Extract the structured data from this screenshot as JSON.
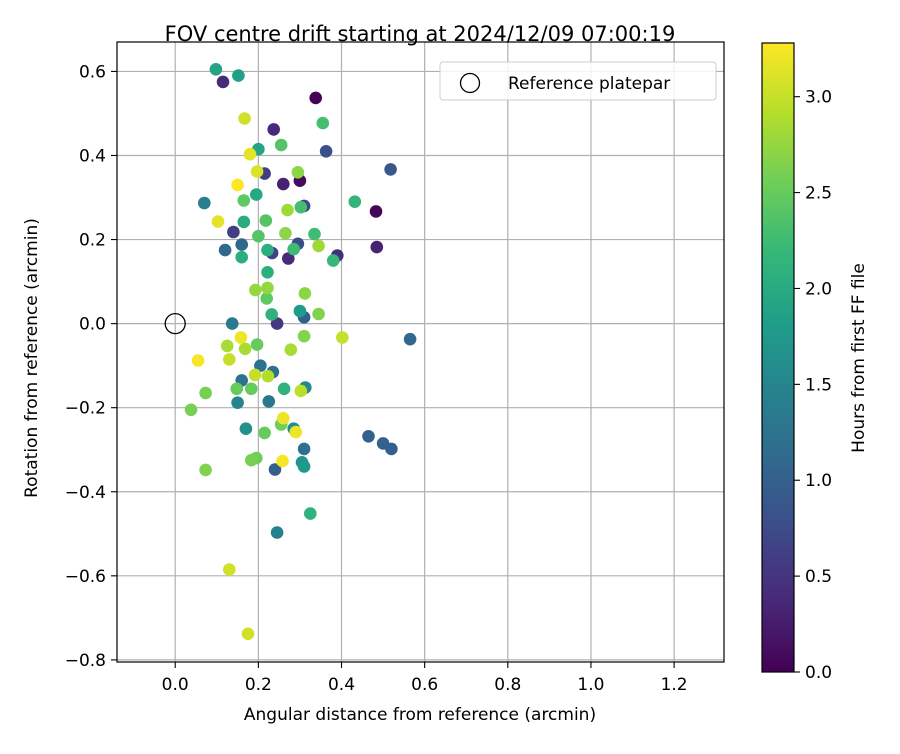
{
  "chart_data": {
    "type": "scatter",
    "title": "FOV centre drift starting at 2024/12/09 07:00:19",
    "xlabel": "Angular distance from reference (arcmin)",
    "ylabel": "Rotation from reference (arcmin)",
    "xlim": [
      -0.14,
      1.32
    ],
    "ylim": [
      -0.805,
      0.67
    ],
    "xticks": [
      "0.0",
      "0.2",
      "0.4",
      "0.6",
      "0.8",
      "1.0",
      "1.2"
    ],
    "yticks": [
      "−0.8",
      "−0.6",
      "−0.4",
      "−0.2",
      "0.0",
      "0.2",
      "0.4",
      "0.6"
    ],
    "grid": true,
    "legend": {
      "placement": "top-right",
      "entries": [
        {
          "label": "Reference platepar",
          "marker": "open-circle",
          "color": "#000000"
        }
      ]
    },
    "reference_point": {
      "x": 0.0,
      "y": 0.0
    },
    "colorbar": {
      "label": "Hours from first FF file",
      "colormap": "viridis",
      "range": [
        0.0,
        3.28
      ],
      "ticks": [
        "0.0",
        "0.5",
        "1.0",
        "1.5",
        "2.0",
        "2.5",
        "3.0"
      ]
    },
    "points": [
      {
        "x": 0.338,
        "y": 0.537,
        "c": 0.02
      },
      {
        "x": 0.483,
        "y": 0.267,
        "c": 0.05
      },
      {
        "x": 0.3,
        "y": 0.34,
        "c": 0.1
      },
      {
        "x": 0.485,
        "y": 0.182,
        "c": 0.3
      },
      {
        "x": 0.26,
        "y": 0.332,
        "c": 0.3
      },
      {
        "x": 0.115,
        "y": 0.575,
        "c": 0.4
      },
      {
        "x": 0.237,
        "y": 0.462,
        "c": 0.4
      },
      {
        "x": 0.272,
        "y": 0.155,
        "c": 0.4
      },
      {
        "x": 0.39,
        "y": 0.162,
        "c": 0.45
      },
      {
        "x": 0.245,
        "y": 0.0,
        "c": 0.55
      },
      {
        "x": 0.14,
        "y": 0.218,
        "c": 0.6
      },
      {
        "x": 0.215,
        "y": 0.357,
        "c": 0.6
      },
      {
        "x": 0.233,
        "y": 0.168,
        "c": 0.65
      },
      {
        "x": 0.31,
        "y": 0.28,
        "c": 0.7
      },
      {
        "x": 0.295,
        "y": 0.19,
        "c": 0.75
      },
      {
        "x": 0.363,
        "y": 0.41,
        "c": 0.8
      },
      {
        "x": 0.518,
        "y": 0.367,
        "c": 0.9
      },
      {
        "x": 0.31,
        "y": 0.015,
        "c": 1.0
      },
      {
        "x": 0.24,
        "y": -0.347,
        "c": 1.0
      },
      {
        "x": 0.465,
        "y": -0.268,
        "c": 1.0
      },
      {
        "x": 0.5,
        "y": -0.285,
        "c": 1.0
      },
      {
        "x": 0.52,
        "y": -0.298,
        "c": 1.0
      },
      {
        "x": 0.565,
        "y": -0.037,
        "c": 1.1
      },
      {
        "x": 0.12,
        "y": 0.175,
        "c": 1.1
      },
      {
        "x": 0.16,
        "y": 0.188,
        "c": 1.1
      },
      {
        "x": 0.31,
        "y": -0.298,
        "c": 1.2
      },
      {
        "x": 0.235,
        "y": -0.115,
        "c": 1.2
      },
      {
        "x": 0.16,
        "y": -0.135,
        "c": 1.25
      },
      {
        "x": 0.205,
        "y": -0.1,
        "c": 1.25
      },
      {
        "x": 0.225,
        "y": -0.185,
        "c": 1.3
      },
      {
        "x": 0.137,
        "y": 0.0,
        "c": 1.35
      },
      {
        "x": 0.07,
        "y": 0.287,
        "c": 1.4
      },
      {
        "x": 0.245,
        "y": -0.497,
        "c": 1.45
      },
      {
        "x": 0.15,
        "y": -0.188,
        "c": 1.5
      },
      {
        "x": 0.313,
        "y": -0.152,
        "c": 1.55
      },
      {
        "x": 0.285,
        "y": -0.25,
        "c": 1.6
      },
      {
        "x": 0.17,
        "y": -0.25,
        "c": 1.65
      },
      {
        "x": 0.305,
        "y": -0.33,
        "c": 1.7
      },
      {
        "x": 0.31,
        "y": -0.34,
        "c": 1.75
      },
      {
        "x": 0.3,
        "y": 0.03,
        "c": 1.8
      },
      {
        "x": 0.152,
        "y": 0.59,
        "c": 1.85
      },
      {
        "x": 0.098,
        "y": 0.605,
        "c": 1.9
      },
      {
        "x": 0.2,
        "y": 0.415,
        "c": 1.9
      },
      {
        "x": 0.195,
        "y": 0.307,
        "c": 1.95
      },
      {
        "x": 0.165,
        "y": 0.242,
        "c": 2.0
      },
      {
        "x": 0.16,
        "y": 0.158,
        "c": 2.05
      },
      {
        "x": 0.222,
        "y": 0.175,
        "c": 2.05
      },
      {
        "x": 0.222,
        "y": 0.122,
        "c": 2.05
      },
      {
        "x": 0.232,
        "y": 0.022,
        "c": 2.1
      },
      {
        "x": 0.262,
        "y": -0.155,
        "c": 2.1
      },
      {
        "x": 0.325,
        "y": -0.452,
        "c": 2.1
      },
      {
        "x": 0.432,
        "y": 0.29,
        "c": 2.15
      },
      {
        "x": 0.38,
        "y": 0.15,
        "c": 2.2
      },
      {
        "x": 0.335,
        "y": 0.213,
        "c": 2.25
      },
      {
        "x": 0.285,
        "y": 0.177,
        "c": 2.25
      },
      {
        "x": 0.302,
        "y": 0.277,
        "c": 2.3
      },
      {
        "x": 0.355,
        "y": 0.477,
        "c": 2.3
      },
      {
        "x": 0.255,
        "y": 0.425,
        "c": 2.4
      },
      {
        "x": 0.218,
        "y": 0.245,
        "c": 2.4
      },
      {
        "x": 0.2,
        "y": 0.208,
        "c": 2.4
      },
      {
        "x": 0.165,
        "y": 0.293,
        "c": 2.45
      },
      {
        "x": 0.22,
        "y": 0.06,
        "c": 2.45
      },
      {
        "x": 0.197,
        "y": -0.05,
        "c": 2.5
      },
      {
        "x": 0.183,
        "y": -0.155,
        "c": 2.5
      },
      {
        "x": 0.148,
        "y": -0.155,
        "c": 2.5
      },
      {
        "x": 0.215,
        "y": -0.26,
        "c": 2.5
      },
      {
        "x": 0.255,
        "y": -0.24,
        "c": 2.55
      },
      {
        "x": 0.195,
        "y": -0.32,
        "c": 2.55
      },
      {
        "x": 0.183,
        "y": -0.325,
        "c": 2.6
      },
      {
        "x": 0.073,
        "y": -0.165,
        "c": 2.6
      },
      {
        "x": 0.038,
        "y": -0.205,
        "c": 2.6
      },
      {
        "x": 0.073,
        "y": -0.348,
        "c": 2.65
      },
      {
        "x": 0.31,
        "y": -0.03,
        "c": 2.65
      },
      {
        "x": 0.345,
        "y": 0.023,
        "c": 2.65
      },
      {
        "x": 0.312,
        "y": 0.072,
        "c": 2.7
      },
      {
        "x": 0.265,
        "y": 0.215,
        "c": 2.7
      },
      {
        "x": 0.295,
        "y": 0.36,
        "c": 2.7
      },
      {
        "x": 0.222,
        "y": 0.085,
        "c": 2.75
      },
      {
        "x": 0.193,
        "y": 0.08,
        "c": 2.75
      },
      {
        "x": 0.345,
        "y": 0.185,
        "c": 2.8
      },
      {
        "x": 0.27,
        "y": 0.27,
        "c": 2.8
      },
      {
        "x": 0.125,
        "y": -0.053,
        "c": 2.85
      },
      {
        "x": 0.168,
        "y": -0.06,
        "c": 2.85
      },
      {
        "x": 0.278,
        "y": -0.062,
        "c": 2.85
      },
      {
        "x": 0.223,
        "y": -0.125,
        "c": 2.9
      },
      {
        "x": 0.302,
        "y": -0.16,
        "c": 2.95
      },
      {
        "x": 0.192,
        "y": -0.122,
        "c": 3.0
      },
      {
        "x": 0.402,
        "y": -0.033,
        "c": 3.0
      },
      {
        "x": 0.13,
        "y": -0.085,
        "c": 3.0
      },
      {
        "x": 0.13,
        "y": -0.585,
        "c": 3.05
      },
      {
        "x": 0.175,
        "y": -0.738,
        "c": 3.05
      },
      {
        "x": 0.167,
        "y": 0.488,
        "c": 3.05
      },
      {
        "x": 0.197,
        "y": 0.362,
        "c": 3.1
      },
      {
        "x": 0.18,
        "y": 0.403,
        "c": 3.15
      },
      {
        "x": 0.103,
        "y": 0.243,
        "c": 3.15
      },
      {
        "x": 0.158,
        "y": -0.033,
        "c": 3.2
      },
      {
        "x": 0.26,
        "y": -0.225,
        "c": 3.2
      },
      {
        "x": 0.29,
        "y": -0.258,
        "c": 3.2
      },
      {
        "x": 0.258,
        "y": -0.327,
        "c": 3.25
      },
      {
        "x": 0.055,
        "y": -0.088,
        "c": 3.25
      },
      {
        "x": 0.15,
        "y": 0.33,
        "c": 3.28
      }
    ]
  }
}
